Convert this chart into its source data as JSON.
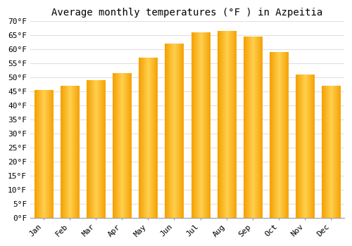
{
  "title": "Average monthly temperatures (°F ) in Azpeitia",
  "months": [
    "Jan",
    "Feb",
    "Mar",
    "Apr",
    "May",
    "Jun",
    "Jul",
    "Aug",
    "Sep",
    "Oct",
    "Nov",
    "Dec"
  ],
  "values": [
    45.5,
    47.0,
    49.0,
    51.5,
    57.0,
    62.0,
    66.0,
    66.5,
    64.5,
    59.0,
    51.0,
    47.0
  ],
  "bar_color_center": "#FFD050",
  "bar_color_edge": "#F5A000",
  "ylim": [
    0,
    70
  ],
  "ytick_step": 5,
  "background_color": "#FFFFFF",
  "grid_color": "#E0E0E0",
  "title_fontsize": 10,
  "tick_fontsize": 8,
  "bar_width": 0.7
}
